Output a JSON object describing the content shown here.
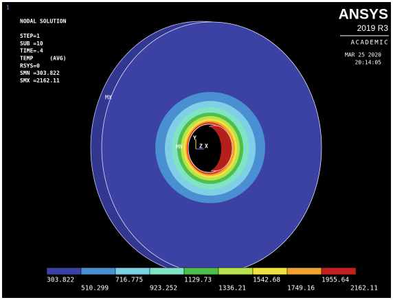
{
  "window_number": "1",
  "info": {
    "lines": [
      "NODAL SOLUTION",
      "STEP=1",
      "SUB =10",
      "TIME=.4",
      "TEMP     (AVG)",
      "RSYS=0",
      "SMN =303.822",
      "SMX =2162.11"
    ]
  },
  "logo": {
    "brand": "ANSYS",
    "version": "2019 R3",
    "edition": "ACADEMIC",
    "date": "MAR 25 2020",
    "time": "20:14:05"
  },
  "markers": {
    "max": "MX",
    "min": "MN"
  },
  "triad": {
    "y": "Y",
    "z": "Z",
    "x": "X"
  },
  "legend": {
    "colors": [
      "#3b42a4",
      "#4b8fd3",
      "#7fd0e6",
      "#7fe3c4",
      "#4dbf4a",
      "#b9e24e",
      "#efe33f",
      "#f2a22f",
      "#c3201f"
    ],
    "labels": [
      "303.822",
      "510.299",
      "716.775",
      "923.252",
      "1129.73",
      "1336.21",
      "1542.68",
      "1749.16",
      "1955.64",
      "2162.11"
    ]
  }
}
